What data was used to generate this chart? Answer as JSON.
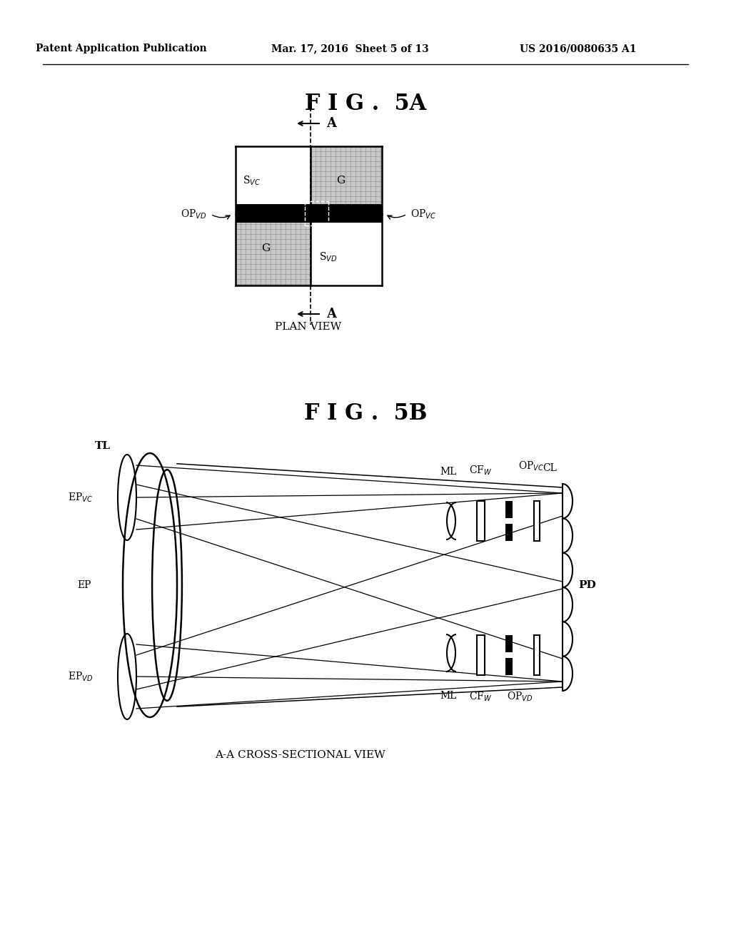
{
  "header_left": "Patent Application Publication",
  "header_mid": "Mar. 17, 2016  Sheet 5 of 13",
  "header_right": "US 2016/0080635 A1",
  "fig5a_title": "F I G .  5A",
  "fig5b_title": "F I G .  5B",
  "plan_view_label": "PLAN VIEW",
  "cross_section_label": "A-A CROSS-SECTIONAL VIEW",
  "bg_color": "#ffffff",
  "black": "#000000",
  "gray_grid": "#cccccc",
  "white": "#ffffff"
}
